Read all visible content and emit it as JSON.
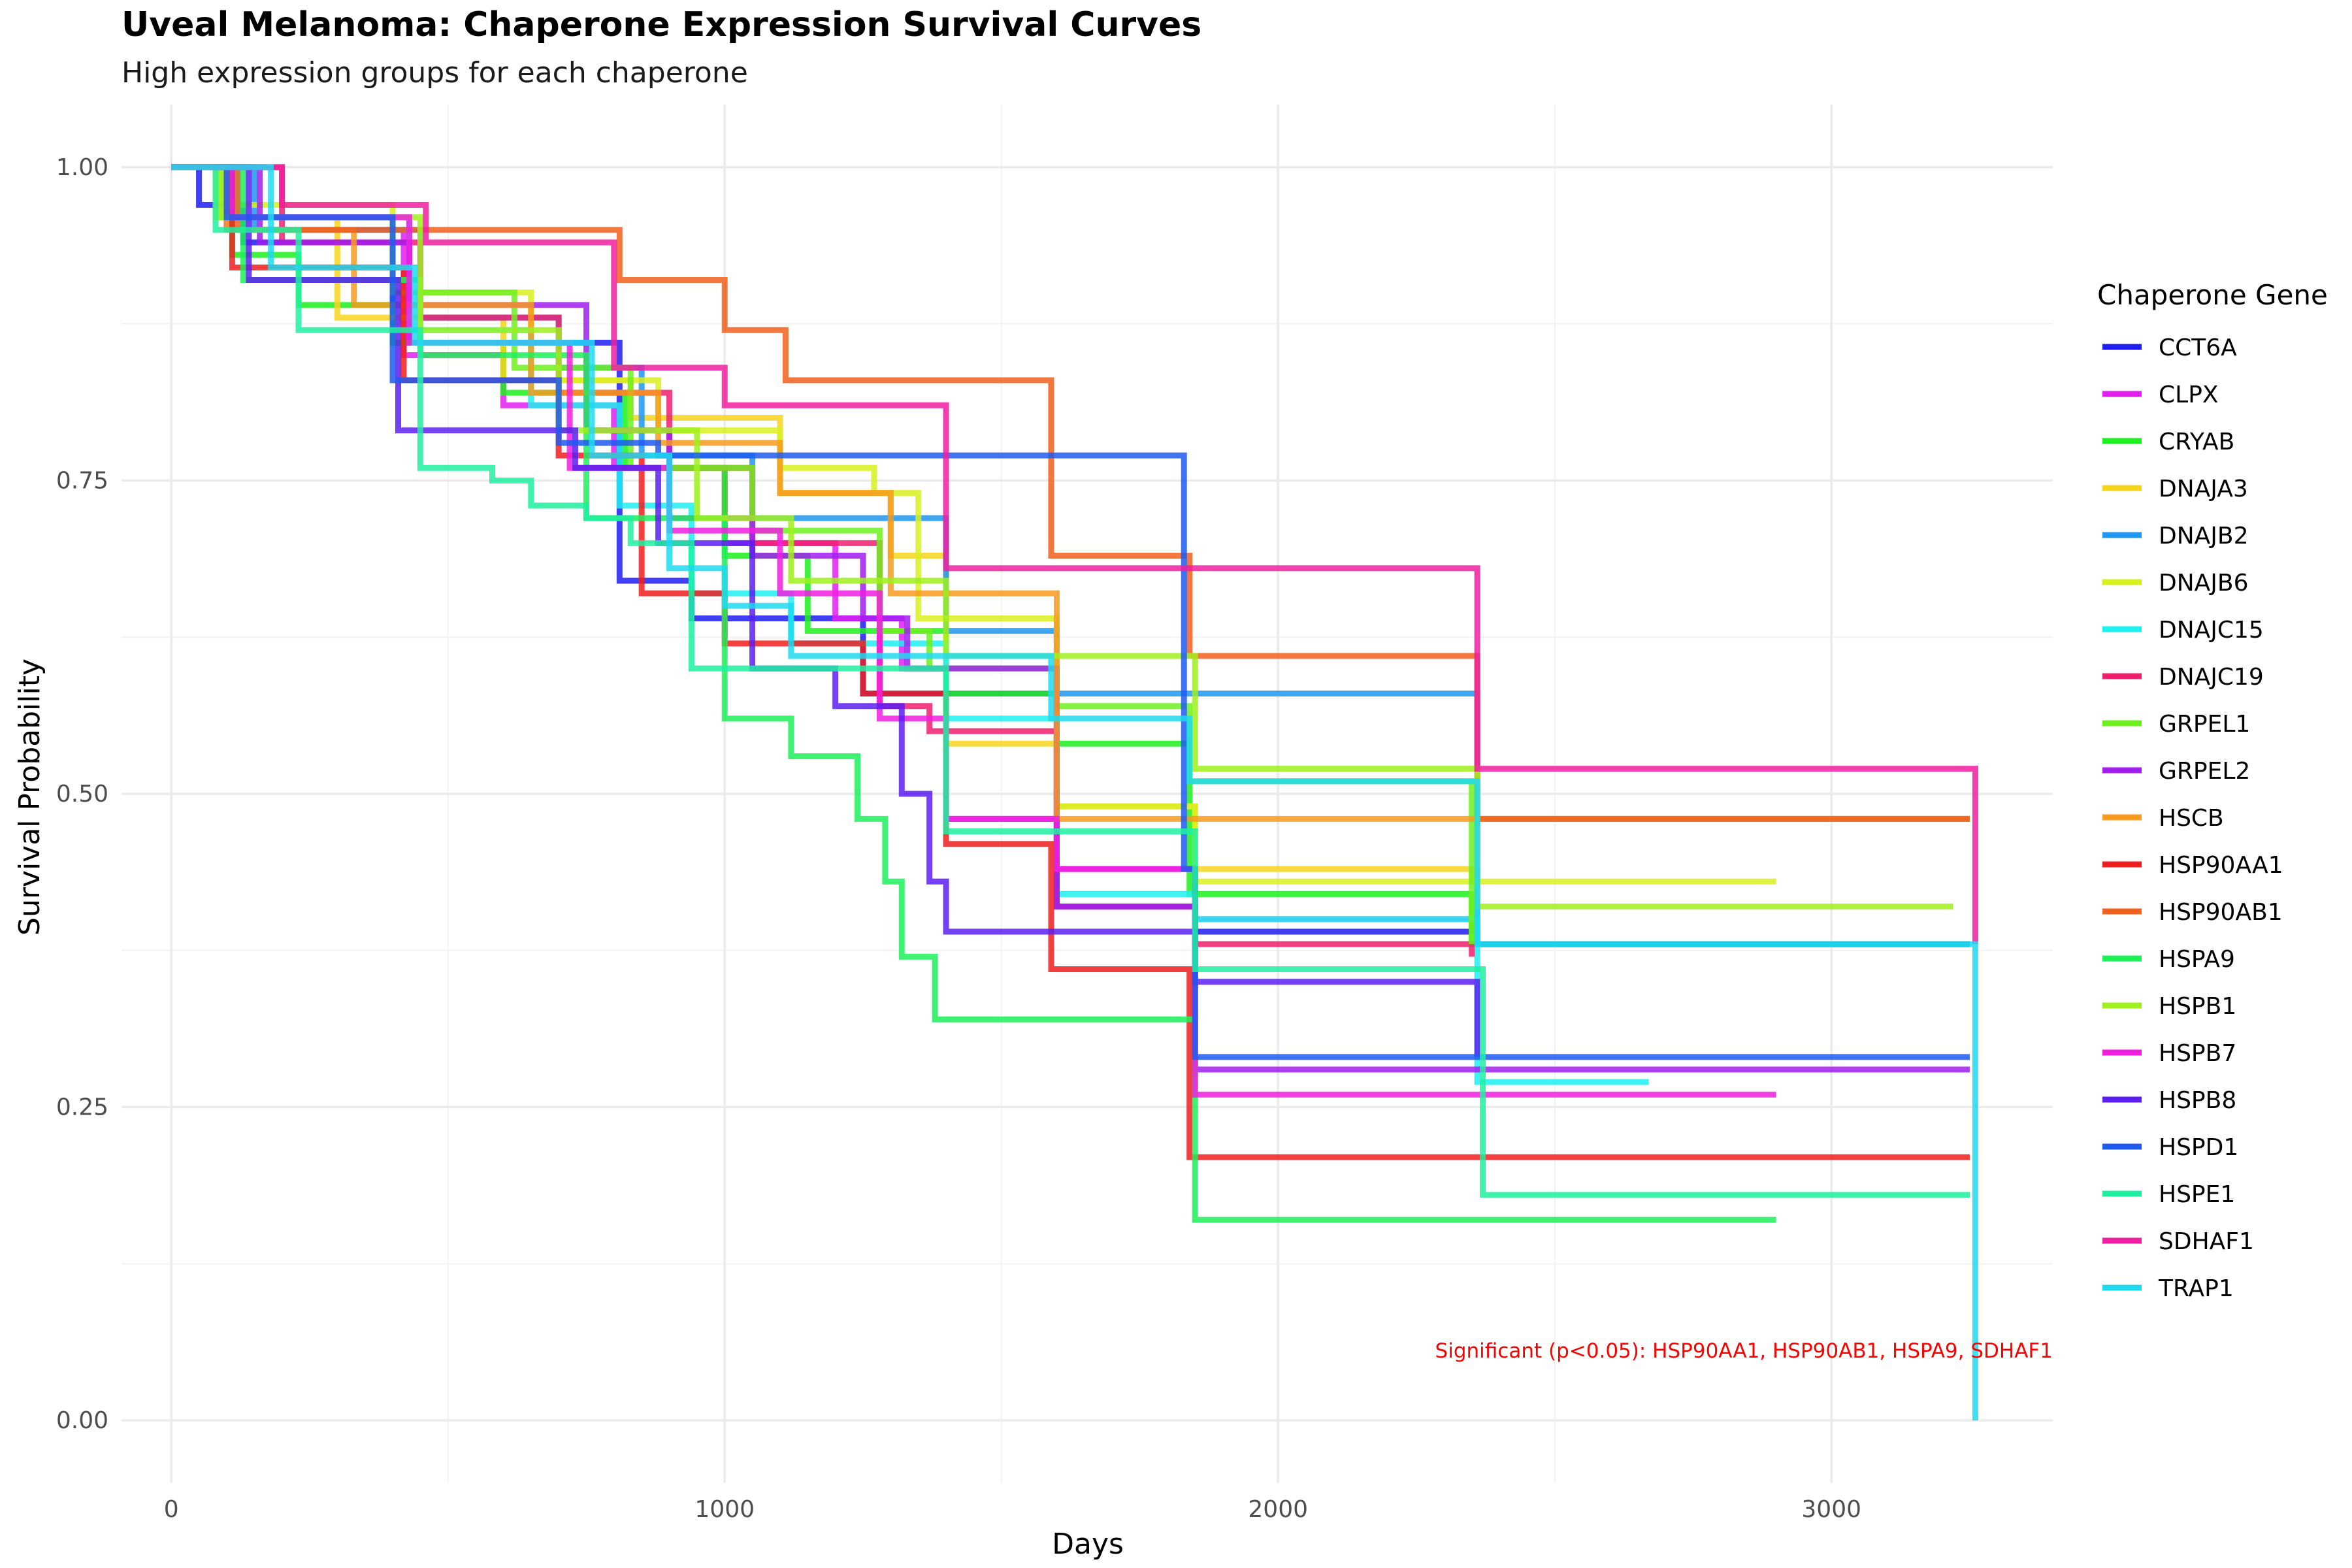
{
  "chart_data": {
    "type": "line",
    "step": true,
    "title": "Uveal Melanoma: Chaperone Expression Survival Curves",
    "subtitle": "High expression groups for each chaperone",
    "xlabel": "Days",
    "ylabel": "Survival Probability",
    "xlim": [
      -90,
      3400
    ],
    "ylim": [
      -0.05,
      1.05
    ],
    "x_ticks": [
      0,
      1000,
      2000,
      3000
    ],
    "x_tick_labels": [
      "0",
      "1000",
      "2000",
      "3000"
    ],
    "y_ticks": [
      0,
      0.25,
      0.5,
      0.75,
      1
    ],
    "y_tick_labels": [
      "0.00",
      "0.25",
      "0.50",
      "0.75",
      "1.00"
    ],
    "grid": true,
    "legend": {
      "title": "Chaperone Gene",
      "placement": "right"
    },
    "annotation": "Significant (p<0.05): HSP90AA1, HSP90AB1, HSPA9, SDHAF1",
    "series": [
      {
        "name": "CCT6A",
        "color": "#1f1ff0",
        "x": [
          0,
          50,
          130,
          400,
          430,
          810,
          940,
          1250,
          1600,
          1850,
          2360,
          3250
        ],
        "y": [
          1,
          0.97,
          0.94,
          0.89,
          0.86,
          0.67,
          0.64,
          0.58,
          0.41,
          0.39,
          0.38,
          0.38
        ]
      },
      {
        "name": "CLPX",
        "color": "#e01ff0",
        "x": [
          0,
          100,
          420,
          600,
          800,
          1000,
          1200,
          1320,
          1400,
          1600,
          1850,
          2350
        ],
        "y": [
          1,
          0.95,
          0.85,
          0.81,
          0.76,
          0.7,
          0.64,
          0.6,
          0.48,
          0.44,
          0.4,
          0.39
        ]
      },
      {
        "name": "CRYAB",
        "color": "#1ff01f",
        "x": [
          0,
          110,
          230,
          400,
          600,
          820,
          1000,
          1150,
          1400,
          1600,
          1840,
          2350,
          3250
        ],
        "y": [
          1,
          0.93,
          0.89,
          0.86,
          0.82,
          0.76,
          0.69,
          0.63,
          0.58,
          0.54,
          0.42,
          0.38,
          0.38
        ]
      },
      {
        "name": "DNAJA3",
        "color": "#f7d51f",
        "x": [
          0,
          80,
          300,
          600,
          830,
          1100,
          1300,
          1400,
          1600,
          1850,
          2350
        ],
        "y": [
          1,
          0.96,
          0.88,
          0.83,
          0.8,
          0.74,
          0.69,
          0.54,
          0.49,
          0.44,
          0.43
        ]
      },
      {
        "name": "DNAJB2",
        "color": "#1f96f0",
        "x": [
          0,
          150,
          450,
          700,
          850,
          1050,
          1400,
          1600,
          2360,
          3250
        ],
        "y": [
          1,
          0.95,
          0.88,
          0.84,
          0.77,
          0.72,
          0.63,
          0.58,
          0.38,
          0.38
        ]
      },
      {
        "name": "DNAJB6",
        "color": "#d9f01f",
        "x": [
          0,
          100,
          400,
          650,
          880,
          1100,
          1270,
          1350,
          1600,
          1850,
          2350,
          2900
        ],
        "y": [
          1,
          0.97,
          0.9,
          0.83,
          0.79,
          0.76,
          0.74,
          0.64,
          0.49,
          0.43,
          0.43,
          0.43
        ]
      },
      {
        "name": "DNAJC15",
        "color": "#1ff0f0",
        "x": [
          0,
          120,
          430,
          650,
          810,
          940,
          1120,
          1400,
          1600,
          1850,
          2360,
          2670
        ],
        "y": [
          1,
          0.96,
          0.87,
          0.81,
          0.73,
          0.66,
          0.62,
          0.56,
          0.42,
          0.4,
          0.27,
          0.27
        ]
      },
      {
        "name": "DNAJC19",
        "color": "#f01f6e",
        "x": [
          0,
          200,
          450,
          700,
          900,
          1050,
          1280,
          1370,
          1600,
          1850,
          2350
        ],
        "y": [
          1,
          0.94,
          0.88,
          0.82,
          0.76,
          0.7,
          0.57,
          0.55,
          0.41,
          0.38,
          0.37
        ]
      },
      {
        "name": "GRPEL1",
        "color": "#6ef01f",
        "x": [
          0,
          90,
          400,
          620,
          830,
          1050,
          1280,
          1370,
          1600,
          1840,
          2350
        ],
        "y": [
          1,
          0.96,
          0.9,
          0.84,
          0.76,
          0.71,
          0.63,
          0.6,
          0.57,
          0.51,
          0.38
        ]
      },
      {
        "name": "GRPEL2",
        "color": "#a01ff0",
        "x": [
          0,
          160,
          430,
          750,
          900,
          1050,
          1250,
          1330,
          1600,
          1850,
          3250
        ],
        "y": [
          1,
          0.94,
          0.89,
          0.79,
          0.72,
          0.69,
          0.64,
          0.6,
          0.41,
          0.28,
          0.28
        ]
      },
      {
        "name": "HSCB",
        "color": "#f79a1f",
        "x": [
          0,
          100,
          330,
          650,
          880,
          1100,
          1300,
          1600,
          2350,
          3250
        ],
        "y": [
          1,
          0.95,
          0.89,
          0.82,
          0.78,
          0.74,
          0.66,
          0.48,
          0.48,
          0.48
        ]
      },
      {
        "name": "HSP90AA1",
        "color": "#f01f1f",
        "x": [
          0,
          110,
          420,
          700,
          850,
          1000,
          1250,
          1400,
          1590,
          1840,
          3250
        ],
        "y": [
          1,
          0.92,
          0.83,
          0.77,
          0.66,
          0.62,
          0.58,
          0.46,
          0.36,
          0.21,
          0.21
        ]
      },
      {
        "name": "HSP90AB1",
        "color": "#f0601f",
        "x": [
          0,
          120,
          450,
          810,
          1000,
          1110,
          1590,
          1840,
          2360,
          3250
        ],
        "y": [
          1,
          0.95,
          0.95,
          0.91,
          0.87,
          0.83,
          0.69,
          0.61,
          0.48,
          0.48
        ]
      },
      {
        "name": "HSPA9",
        "color": "#1ff05a",
        "x": [
          0,
          130,
          450,
          750,
          1000,
          1120,
          1240,
          1290,
          1320,
          1380,
          1850,
          2900
        ],
        "y": [
          1,
          0.91,
          0.85,
          0.72,
          0.56,
          0.53,
          0.48,
          0.43,
          0.37,
          0.32,
          0.16,
          0.16
        ]
      },
      {
        "name": "HSPB1",
        "color": "#a0f01f",
        "x": [
          0,
          90,
          450,
          700,
          950,
          1120,
          1400,
          1850,
          2360,
          3220
        ],
        "y": [
          1,
          0.96,
          0.87,
          0.79,
          0.72,
          0.67,
          0.61,
          0.52,
          0.41,
          0.41
        ]
      },
      {
        "name": "HSPB7",
        "color": "#f01fe0",
        "x": [
          0,
          110,
          430,
          720,
          900,
          1100,
          1280,
          1400,
          1600,
          1850,
          2900
        ],
        "y": [
          1,
          0.96,
          0.86,
          0.76,
          0.71,
          0.66,
          0.56,
          0.48,
          0.44,
          0.26,
          0.26
        ]
      },
      {
        "name": "HSPB8",
        "color": "#5a1ff0",
        "x": [
          0,
          140,
          410,
          730,
          880,
          1050,
          1200,
          1320,
          1370,
          1400,
          1850,
          2360
        ],
        "y": [
          1,
          0.91,
          0.79,
          0.76,
          0.7,
          0.6,
          0.57,
          0.5,
          0.43,
          0.39,
          0.35,
          0.29
        ]
      },
      {
        "name": "HSPD1",
        "color": "#1f5af0",
        "x": [
          0,
          100,
          400,
          700,
          880,
          1590,
          1830,
          1850,
          3250
        ],
        "y": [
          1,
          0.96,
          0.83,
          0.78,
          0.77,
          0.77,
          0.44,
          0.29,
          0.29
        ]
      },
      {
        "name": "HSPE1",
        "color": "#1ff0a0",
        "x": [
          0,
          80,
          230,
          450,
          580,
          650,
          750,
          830,
          940,
          1400,
          1850,
          2350,
          2370,
          3250
        ],
        "y": [
          1,
          0.95,
          0.87,
          0.76,
          0.75,
          0.73,
          0.72,
          0.7,
          0.6,
          0.47,
          0.36,
          0.36,
          0.18,
          0.18
        ]
      },
      {
        "name": "SDHAF1",
        "color": "#f01fa0",
        "x": [
          0,
          200,
          460,
          800,
          1000,
          1400,
          2360,
          3250,
          3260
        ],
        "y": [
          1,
          0.97,
          0.94,
          0.84,
          0.81,
          0.68,
          0.52,
          0.52,
          0.38
        ]
      },
      {
        "name": "TRAP1",
        "color": "#1fd9f0",
        "x": [
          0,
          180,
          440,
          760,
          900,
          1000,
          1120,
          1590,
          1840,
          2360,
          3250,
          3260
        ],
        "y": [
          1,
          0.92,
          0.86,
          0.77,
          0.68,
          0.65,
          0.61,
          0.56,
          0.51,
          0.38,
          0.38,
          0.0
        ]
      }
    ]
  }
}
